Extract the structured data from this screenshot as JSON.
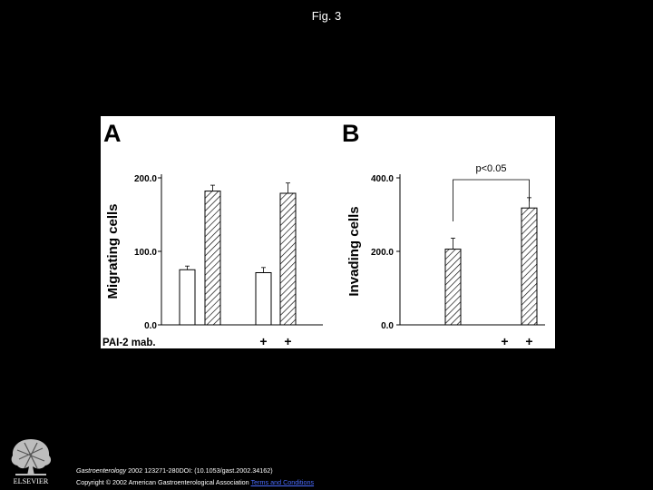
{
  "title": "Fig. 3",
  "chart_data": [
    {
      "type": "bar",
      "panel_label": "A",
      "ylabel": "Migrating cells",
      "ylim": [
        0,
        200
      ],
      "yticks": [
        "0.0",
        "100.0",
        "200.0"
      ],
      "treatment_label": "PAI-2 mab.",
      "treatment_marks": [
        "",
        "",
        "+",
        "+"
      ],
      "bars": [
        {
          "value": 75,
          "error": 5,
          "pattern": "open"
        },
        {
          "value": 182,
          "error": 8,
          "pattern": "hatched"
        },
        {
          "value": 71,
          "error": 7,
          "pattern": "open"
        },
        {
          "value": 179,
          "error": 14,
          "pattern": "hatched"
        }
      ]
    },
    {
      "type": "bar",
      "panel_label": "B",
      "ylabel": "Invading cells",
      "ylim": [
        0,
        400
      ],
      "yticks": [
        "0.0",
        "200.0",
        "400.0"
      ],
      "treatment_marks": [
        "",
        "",
        "+",
        "+"
      ],
      "annotation": "p<0.05",
      "bars": [
        {
          "value": 0,
          "error": 0,
          "pattern": "open"
        },
        {
          "value": 206,
          "error": 30,
          "pattern": "hatched"
        },
        {
          "value": 0,
          "error": 0,
          "pattern": "open"
        },
        {
          "value": 318,
          "error": 28,
          "pattern": "hatched"
        }
      ]
    }
  ],
  "footer": {
    "journal": "Gastroenterology",
    "citation": " 2002 123271-280DOI: (10.1053/gast.2002.34162)",
    "copyright": "Copyright © 2002 American Gastroenterological Association",
    "terms_link": "Terms and Conditions"
  },
  "publisher_logo": {
    "name": "elsevier-logo",
    "text": "ELSEVIER"
  }
}
